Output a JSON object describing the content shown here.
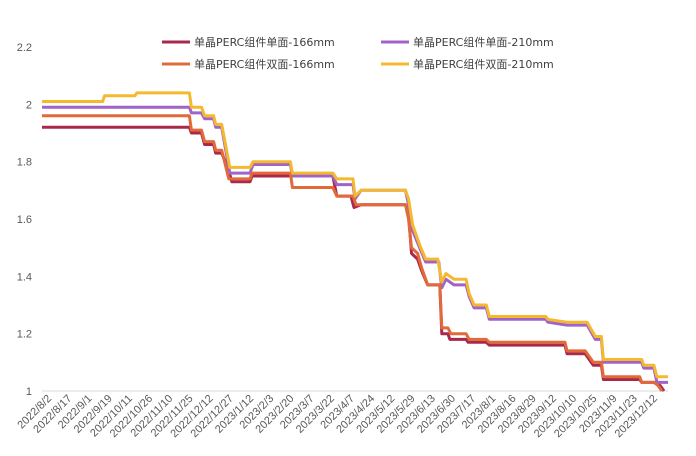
{
  "chart_data": {
    "type": "line",
    "title": "",
    "xlabel": "",
    "ylabel": "",
    "ylim": [
      1,
      2.2
    ],
    "yticks": [
      1,
      1.2,
      1.4,
      1.6,
      1.8,
      2,
      2.2
    ],
    "ytick_labels": [
      "1",
      "1.2",
      "1.4",
      "1.6",
      "1.8",
      "2",
      "2.2"
    ],
    "grid": false,
    "legend_position": "top",
    "x_categories": [
      "2022/8/2",
      "2022/8/17",
      "2022/9/1",
      "2022/9/19",
      "2022/10/11",
      "2022/10/26",
      "2022/11/10",
      "2022/11/25",
      "2022/12/12",
      "2022/12/27",
      "2023/1/12",
      "2023/2/3",
      "2023/2/20",
      "2023/3/7",
      "2023/3/22",
      "2023/4/7",
      "2023/4/24",
      "2023/5/12",
      "2023/5/29",
      "2023/6/13",
      "2023/6/30",
      "2023/7/17",
      "2023/8/1",
      "2023/8/16",
      "2023/8/29",
      "2023/9/12",
      "2023/10/10",
      "2023/10/25",
      "2023/11/9",
      "2023/11/23",
      "2023/12/12"
    ],
    "series": [
      {
        "name": "单晶PERC组件单面-166mm",
        "color": "#A8294B",
        "points": [
          [
            0,
            1.92
          ],
          [
            7.3,
            1.92
          ],
          [
            7.4,
            1.9
          ],
          [
            7.9,
            1.9
          ],
          [
            8.05,
            1.86
          ],
          [
            8.5,
            1.86
          ],
          [
            8.6,
            1.83
          ],
          [
            8.9,
            1.83
          ],
          [
            9.2,
            1.78
          ],
          [
            9.4,
            1.73
          ],
          [
            10.3,
            1.73
          ],
          [
            10.4,
            1.75
          ],
          [
            14.4,
            1.75
          ],
          [
            14.6,
            1.68
          ],
          [
            15.3,
            1.68
          ],
          [
            15.45,
            1.64
          ],
          [
            15.8,
            1.65
          ],
          [
            18.0,
            1.65
          ],
          [
            18.15,
            1.62
          ],
          [
            18.3,
            1.48
          ],
          [
            18.6,
            1.46
          ],
          [
            18.8,
            1.42
          ],
          [
            19.1,
            1.37
          ],
          [
            19.7,
            1.37
          ],
          [
            19.8,
            1.2
          ],
          [
            20.1,
            1.2
          ],
          [
            20.2,
            1.18
          ],
          [
            21.0,
            1.18
          ],
          [
            21.1,
            1.17
          ],
          [
            22.0,
            1.17
          ],
          [
            22.15,
            1.16
          ],
          [
            25.9,
            1.16
          ],
          [
            26.0,
            1.13
          ],
          [
            26.9,
            1.13
          ],
          [
            27.3,
            1.09
          ],
          [
            27.7,
            1.09
          ],
          [
            27.8,
            1.04
          ],
          [
            29.6,
            1.04
          ],
          [
            29.7,
            1.03
          ],
          [
            30.3,
            1.03
          ],
          [
            30.6,
            1.02
          ],
          [
            30.8,
            1.0
          ]
        ]
      },
      {
        "name": "单晶PERC组件单面-210mm",
        "color": "#A064C8",
        "points": [
          [
            0,
            1.99
          ],
          [
            7.3,
            1.99
          ],
          [
            7.4,
            1.97
          ],
          [
            7.9,
            1.97
          ],
          [
            8.05,
            1.95
          ],
          [
            8.5,
            1.95
          ],
          [
            8.6,
            1.92
          ],
          [
            8.9,
            1.92
          ],
          [
            9.3,
            1.76
          ],
          [
            10.3,
            1.76
          ],
          [
            10.45,
            1.79
          ],
          [
            12.3,
            1.79
          ],
          [
            12.4,
            1.75
          ],
          [
            14.4,
            1.75
          ],
          [
            14.6,
            1.72
          ],
          [
            15.4,
            1.72
          ],
          [
            15.5,
            1.67
          ],
          [
            15.8,
            1.7
          ],
          [
            18.0,
            1.7
          ],
          [
            18.15,
            1.65
          ],
          [
            18.35,
            1.56
          ],
          [
            18.7,
            1.5
          ],
          [
            19.0,
            1.45
          ],
          [
            19.65,
            1.45
          ],
          [
            19.8,
            1.36
          ],
          [
            20.0,
            1.39
          ],
          [
            20.4,
            1.37
          ],
          [
            21.0,
            1.37
          ],
          [
            21.15,
            1.33
          ],
          [
            21.4,
            1.29
          ],
          [
            22.0,
            1.29
          ],
          [
            22.15,
            1.25
          ],
          [
            24.95,
            1.25
          ],
          [
            25.05,
            1.24
          ],
          [
            26.0,
            1.23
          ],
          [
            27.0,
            1.23
          ],
          [
            27.4,
            1.18
          ],
          [
            27.7,
            1.18
          ],
          [
            27.8,
            1.1
          ],
          [
            29.7,
            1.1
          ],
          [
            29.8,
            1.08
          ],
          [
            30.3,
            1.08
          ],
          [
            30.45,
            1.03
          ],
          [
            31.0,
            1.03
          ]
        ]
      },
      {
        "name": "单晶PERC组件双面-166mm",
        "color": "#E2693A",
        "points": [
          [
            0,
            1.96
          ],
          [
            7.3,
            1.96
          ],
          [
            7.4,
            1.91
          ],
          [
            7.9,
            1.91
          ],
          [
            8.05,
            1.87
          ],
          [
            8.5,
            1.87
          ],
          [
            8.6,
            1.84
          ],
          [
            8.9,
            1.84
          ],
          [
            9.25,
            1.74
          ],
          [
            10.3,
            1.74
          ],
          [
            10.4,
            1.76
          ],
          [
            12.3,
            1.76
          ],
          [
            12.4,
            1.71
          ],
          [
            14.4,
            1.71
          ],
          [
            14.6,
            1.68
          ],
          [
            15.4,
            1.68
          ],
          [
            15.55,
            1.65
          ],
          [
            18.0,
            1.65
          ],
          [
            18.15,
            1.6
          ],
          [
            18.3,
            1.5
          ],
          [
            18.6,
            1.48
          ],
          [
            18.8,
            1.43
          ],
          [
            19.1,
            1.37
          ],
          [
            19.7,
            1.37
          ],
          [
            19.8,
            1.22
          ],
          [
            20.1,
            1.22
          ],
          [
            20.25,
            1.2
          ],
          [
            21.0,
            1.2
          ],
          [
            21.15,
            1.18
          ],
          [
            22.0,
            1.18
          ],
          [
            22.15,
            1.17
          ],
          [
            25.9,
            1.17
          ],
          [
            26.0,
            1.14
          ],
          [
            26.9,
            1.14
          ],
          [
            27.3,
            1.1
          ],
          [
            27.7,
            1.1
          ],
          [
            27.8,
            1.05
          ],
          [
            29.6,
            1.05
          ],
          [
            29.7,
            1.03
          ],
          [
            30.3,
            1.03
          ],
          [
            30.5,
            1.02
          ],
          [
            30.7,
            1.0
          ]
        ]
      },
      {
        "name": "单晶PERC组件双面-210mm",
        "color": "#F5B92E",
        "points": [
          [
            0,
            2.01
          ],
          [
            3.0,
            2.01
          ],
          [
            3.1,
            2.03
          ],
          [
            4.6,
            2.03
          ],
          [
            4.7,
            2.04
          ],
          [
            7.3,
            2.04
          ],
          [
            7.4,
            1.99
          ],
          [
            7.9,
            1.99
          ],
          [
            8.05,
            1.96
          ],
          [
            8.5,
            1.96
          ],
          [
            8.6,
            1.93
          ],
          [
            8.9,
            1.93
          ],
          [
            9.3,
            1.78
          ],
          [
            10.3,
            1.78
          ],
          [
            10.45,
            1.8
          ],
          [
            12.3,
            1.8
          ],
          [
            12.4,
            1.76
          ],
          [
            14.4,
            1.76
          ],
          [
            14.6,
            1.74
          ],
          [
            15.4,
            1.74
          ],
          [
            15.5,
            1.68
          ],
          [
            15.8,
            1.7
          ],
          [
            18.0,
            1.7
          ],
          [
            18.15,
            1.67
          ],
          [
            18.35,
            1.58
          ],
          [
            18.7,
            1.51
          ],
          [
            19.0,
            1.46
          ],
          [
            19.6,
            1.46
          ],
          [
            19.8,
            1.38
          ],
          [
            20.0,
            1.41
          ],
          [
            20.4,
            1.39
          ],
          [
            21.0,
            1.39
          ],
          [
            21.15,
            1.34
          ],
          [
            21.4,
            1.3
          ],
          [
            22.0,
            1.3
          ],
          [
            22.15,
            1.26
          ],
          [
            24.95,
            1.26
          ],
          [
            25.05,
            1.25
          ],
          [
            26.0,
            1.24
          ],
          [
            27.0,
            1.24
          ],
          [
            27.4,
            1.19
          ],
          [
            27.7,
            1.19
          ],
          [
            27.8,
            1.11
          ],
          [
            29.7,
            1.11
          ],
          [
            29.8,
            1.09
          ],
          [
            30.3,
            1.09
          ],
          [
            30.45,
            1.05
          ],
          [
            31.0,
            1.05
          ]
        ]
      }
    ]
  }
}
